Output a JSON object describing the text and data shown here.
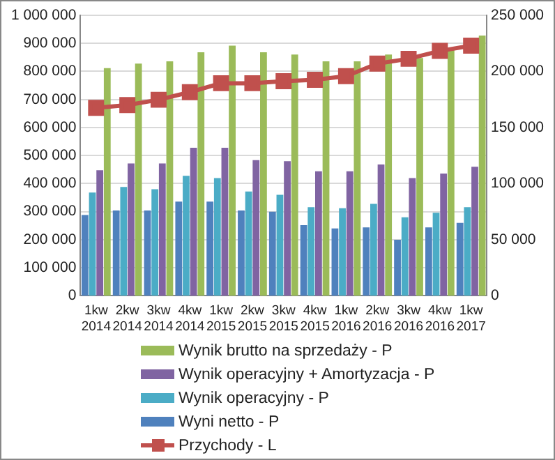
{
  "chart_data": {
    "type": "bar",
    "categories": [
      "1kw 2014",
      "2kw 2014",
      "3kw 2014",
      "4kw 2014",
      "1kw 2015",
      "2kw 2015",
      "3kw 2015",
      "4kw 2015",
      "1kw 2016",
      "2kw 2016",
      "3kw 2016",
      "4kw 2016",
      "1kw 2017"
    ],
    "series": [
      {
        "name": "Wynik brutto na sprzedaży - P",
        "axis": "y2",
        "color": "#9bbb59",
        "values": [
          203000,
          207000,
          209000,
          217000,
          223000,
          217000,
          215000,
          209000,
          209000,
          215000,
          212000,
          219000,
          232000
        ]
      },
      {
        "name": "Wynik operacyjny + Amortyzacja - P",
        "axis": "y2",
        "color": "#8064a2",
        "values": [
          112000,
          118000,
          118000,
          132000,
          132000,
          121000,
          120000,
          111000,
          111000,
          117000,
          105000,
          109000,
          115000
        ]
      },
      {
        "name": "Wynik operacyjny - P",
        "axis": "y2",
        "color": "#4bacc6",
        "values": [
          92000,
          97000,
          95000,
          107000,
          105000,
          93000,
          90000,
          79000,
          78000,
          82000,
          70000,
          74000,
          79000
        ]
      },
      {
        "name": "Wyni netto - P",
        "axis": "y2",
        "color": "#4f81bd",
        "values": [
          72000,
          76000,
          76000,
          84000,
          84000,
          76000,
          75000,
          63000,
          60000,
          61000,
          50000,
          61000,
          65000
        ]
      },
      {
        "name": "Przychody - L",
        "type": "line",
        "axis": "y",
        "color": "#c0504d",
        "marker": "square",
        "values": [
          670000,
          680000,
          699000,
          726000,
          758000,
          758000,
          765000,
          770000,
          783000,
          828000,
          845000,
          873000,
          892000
        ]
      }
    ],
    "ylim": [
      0,
      1000000
    ],
    "yticks": [
      {
        "value": 0,
        "label": "0"
      },
      {
        "value": 100000,
        "label": "100 000"
      },
      {
        "value": 200000,
        "label": "200 000"
      },
      {
        "value": 300000,
        "label": "300 000"
      },
      {
        "value": 400000,
        "label": "400 000"
      },
      {
        "value": 500000,
        "label": "500 000"
      },
      {
        "value": 600000,
        "label": "600 000"
      },
      {
        "value": 700000,
        "label": "700 000"
      },
      {
        "value": 800000,
        "label": "800 000"
      },
      {
        "value": 900000,
        "label": "900 000"
      },
      {
        "value": 1000000,
        "label": "1 000 000"
      }
    ],
    "y2lim": [
      0,
      250000
    ],
    "y2ticks": [
      {
        "value": 0,
        "label": "0"
      },
      {
        "value": 50000,
        "label": "50 000"
      },
      {
        "value": 100000,
        "label": "100 000"
      },
      {
        "value": 150000,
        "label": "150 000"
      },
      {
        "value": 200000,
        "label": "200 000"
      },
      {
        "value": 250000,
        "label": "250 000"
      }
    ],
    "grid": "y",
    "legend": "bottom"
  }
}
